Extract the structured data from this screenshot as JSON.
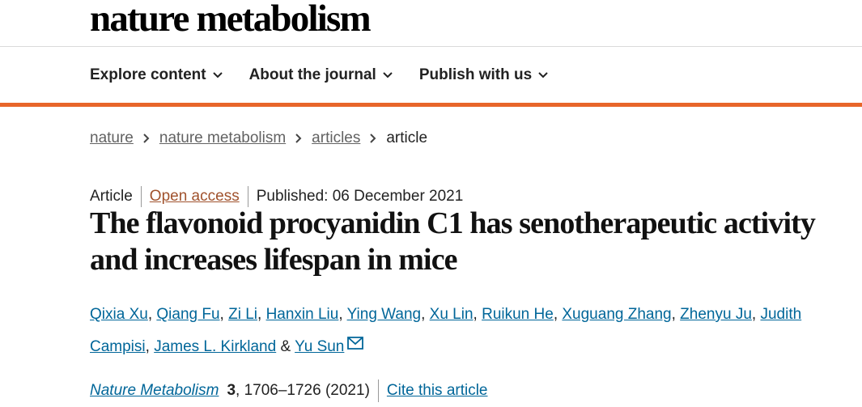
{
  "header": {
    "logo": "nature metabolism",
    "nav": [
      "Explore content",
      "About the journal",
      "Publish with us"
    ]
  },
  "breadcrumb": [
    "nature",
    "nature metabolism",
    "articles",
    "article"
  ],
  "article": {
    "type": "Article",
    "access": "Open access",
    "published": "Published: 06 December 2021",
    "title": "The flavonoid procyanidin C1 has senotherapeutic activity and increases lifespan in mice",
    "authors": [
      {
        "name": "Qixia Xu",
        "sep": ", "
      },
      {
        "name": "Qiang Fu",
        "sep": ", "
      },
      {
        "name": "Zi Li",
        "sep": ", "
      },
      {
        "name": "Hanxin Liu",
        "sep": ", "
      },
      {
        "name": "Ying Wang",
        "sep": ", "
      },
      {
        "name": "Xu Lin",
        "sep": ", "
      },
      {
        "name": "Ruikun He",
        "sep": ", "
      },
      {
        "name": "Xuguang Zhang",
        "sep": ", "
      },
      {
        "name": "Zhenyu Ju",
        "sep": ", "
      },
      {
        "name": "Judith Campisi",
        "sep": ", "
      },
      {
        "name": "James L. Kirkland",
        "sep": " & "
      },
      {
        "name": "Yu Sun",
        "sep": null
      }
    ],
    "citation": {
      "journal": "Nature Metabolism",
      "volume": "3",
      "details": ", 1706–1726 (2021)",
      "cite_link": "Cite this article"
    }
  }
}
